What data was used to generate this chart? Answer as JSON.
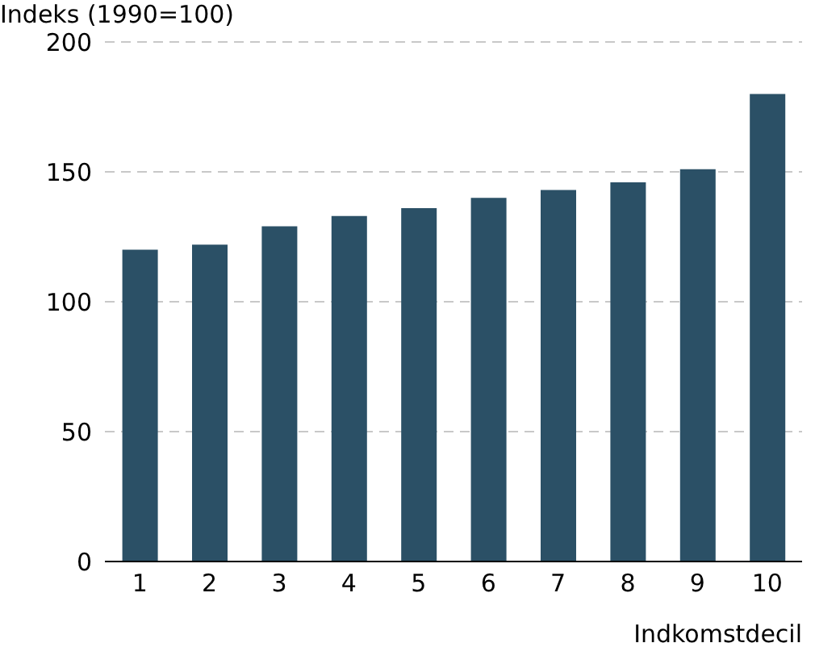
{
  "chart_data": {
    "type": "bar",
    "ylabel": "Indeks (1990=100)",
    "xlabel": "Indkomstdecil",
    "categories": [
      "1",
      "2",
      "3",
      "4",
      "5",
      "6",
      "7",
      "8",
      "9",
      "10"
    ],
    "values": [
      120,
      122,
      129,
      133,
      136,
      140,
      143,
      146,
      151,
      180
    ],
    "color": "#2b5066",
    "ylim": [
      0,
      200
    ],
    "yticks": [
      0,
      50,
      100,
      150,
      200
    ],
    "grid": "y"
  }
}
